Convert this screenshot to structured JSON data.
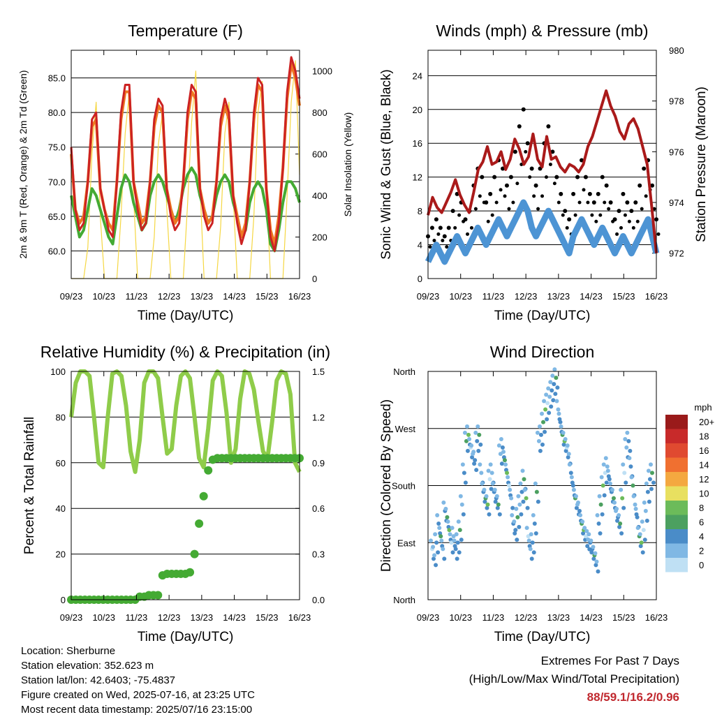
{
  "x_ticks": [
    "09/23",
    "10/23",
    "11/23",
    "12/23",
    "13/23",
    "14/23",
    "15/23",
    "16/23"
  ],
  "chart_data": [
    {
      "type": "line",
      "title": "Temperature (F)",
      "xlabel": "Time (Day/UTC)",
      "ylabel": "2m & 9m T (Red, Orange) & 2m Td (Green)",
      "ylabel_right": "Solar Insolation (Yellow)",
      "ylim": [
        56,
        89
      ],
      "yticks": [
        "60.0",
        "65.0",
        "70.0",
        "75.0",
        "80.0",
        "85.0"
      ],
      "ylim_right": [
        0,
        1100
      ],
      "yticks_right": [
        "0",
        "200",
        "400",
        "600",
        "800",
        "1000"
      ],
      "series": [
        {
          "name": "2m T",
          "color": "#cc2222",
          "values": [
            75,
            66,
            63,
            64,
            70,
            79,
            80,
            69,
            66,
            63,
            62,
            70,
            80,
            84,
            84,
            70,
            66,
            63,
            64,
            70,
            79,
            82,
            81,
            69,
            65,
            63,
            64,
            70,
            80,
            84,
            83,
            69,
            65,
            63,
            64,
            70,
            79,
            82,
            80,
            68,
            64,
            61,
            63,
            70,
            80,
            85,
            84,
            69,
            62,
            60,
            64,
            72,
            83,
            88,
            86,
            82
          ]
        },
        {
          "name": "9m T",
          "color": "#ee7722",
          "values": [
            74,
            66,
            64,
            65,
            70,
            78,
            79,
            69,
            66,
            64,
            63,
            70,
            79,
            83,
            83,
            70,
            67,
            64,
            65,
            70,
            78,
            81,
            80,
            69,
            66,
            64,
            65,
            70,
            79,
            83,
            82,
            69,
            66,
            64,
            65,
            70,
            78,
            81,
            79,
            68,
            65,
            62,
            64,
            70,
            79,
            84,
            83,
            69,
            63,
            61,
            65,
            72,
            82,
            87,
            85,
            81
          ]
        },
        {
          "name": "2m Td",
          "color": "#44aa33",
          "values": [
            68,
            65,
            62,
            63,
            66,
            69,
            68,
            66,
            64,
            62,
            61,
            65,
            69,
            71,
            70,
            67,
            65,
            63,
            64,
            68,
            70,
            71,
            70,
            68,
            66,
            64,
            66,
            69,
            71,
            72,
            71,
            68,
            66,
            64,
            65,
            68,
            70,
            71,
            70,
            67,
            65,
            62,
            63,
            67,
            69,
            70,
            69,
            66,
            61,
            60,
            63,
            67,
            70,
            70,
            69,
            67
          ]
        },
        {
          "name": "Solar Insolation",
          "color": "#f5d742",
          "axis": "right",
          "values": [
            0,
            0,
            0,
            0,
            150,
            600,
            850,
            300,
            0,
            0,
            0,
            0,
            300,
            700,
            900,
            400,
            0,
            0,
            0,
            0,
            200,
            650,
            800,
            350,
            0,
            0,
            0,
            0,
            350,
            750,
            1000,
            450,
            0,
            0,
            0,
            0,
            250,
            700,
            850,
            400,
            0,
            0,
            0,
            0,
            300,
            800,
            950,
            450,
            0,
            0,
            0,
            0,
            400,
            850,
            1050,
            500
          ]
        }
      ]
    },
    {
      "type": "line",
      "title": "Winds (mph) & Pressure (mb)",
      "xlabel": "Time (Day/UTC)",
      "ylabel": "Sonic Wind & Gust (Blue, Black)",
      "ylabel_right": "Station Pressure (Maroon)",
      "ylim": [
        0,
        27
      ],
      "yticks": [
        "0",
        "4",
        "8",
        "12",
        "16",
        "20",
        "24"
      ],
      "ylim_right": [
        971,
        980
      ],
      "yticks_right": [
        "972",
        "974",
        "976",
        "978",
        "980"
      ],
      "series": [
        {
          "name": "Sonic Wind",
          "color": "#4d94d4",
          "values": [
            2,
            3,
            4,
            3,
            2,
            3,
            4,
            5,
            4,
            3,
            4,
            5,
            6,
            5,
            4,
            5,
            6,
            7,
            6,
            5,
            6,
            7,
            8,
            9,
            8,
            6,
            5,
            6,
            7,
            8,
            7,
            6,
            5,
            4,
            3,
            5,
            6,
            7,
            6,
            5,
            4,
            5,
            6,
            5,
            4,
            3,
            4,
            5,
            4,
            3,
            4,
            5,
            6,
            7,
            5,
            3
          ]
        },
        {
          "name": "Gust",
          "color": "#000000",
          "values": [
            5,
            6,
            7,
            6,
            5,
            6,
            8,
            10,
            9,
            7,
            8,
            11,
            13,
            12,
            9,
            10,
            12,
            14,
            13,
            11,
            12,
            15,
            18,
            20,
            16,
            13,
            11,
            13,
            16,
            18,
            15,
            12,
            10,
            8,
            7,
            10,
            12,
            14,
            12,
            10,
            9,
            10,
            12,
            11,
            9,
            7,
            8,
            10,
            9,
            8,
            9,
            11,
            13,
            14,
            11,
            7
          ]
        },
        {
          "name": "Station Pressure",
          "color": "#aa1a1a",
          "axis": "right",
          "values": [
            973.5,
            974.2,
            973.8,
            973.6,
            974.0,
            974.4,
            974.9,
            974.3,
            973.9,
            973.6,
            974.4,
            975.3,
            975.6,
            976.2,
            975.5,
            975.6,
            976.0,
            975.3,
            975.7,
            976.5,
            976.1,
            975.5,
            975.8,
            976.7,
            975.7,
            975.4,
            976.6,
            975.7,
            975.8,
            975.4,
            975.2,
            975.5,
            975.4,
            975.2,
            975.5,
            976.2,
            976.6,
            977.2,
            977.8,
            978.4,
            977.8,
            977.4,
            976.8,
            976.5,
            977.1,
            977.3,
            976.9,
            976.2,
            975.5,
            973.8,
            972.0
          ]
        }
      ]
    },
    {
      "type": "line",
      "title": "Relative Humidity (%) & Precipitation (in)",
      "xlabel": "Time (Day/UTC)",
      "ylabel": "Percent & Total Rainfall",
      "ylim": [
        0,
        100
      ],
      "yticks": [
        "0",
        "20",
        "40",
        "60",
        "80",
        "100"
      ],
      "ylim_right": [
        0,
        1.5
      ],
      "yticks_right": [
        "0.0",
        "0.3",
        "0.6",
        "0.9",
        "1.2",
        "1.5"
      ],
      "series": [
        {
          "name": "Relative Humidity",
          "color": "#8fcc4a",
          "values": [
            80,
            95,
            100,
            100,
            98,
            80,
            60,
            58,
            80,
            99,
            100,
            98,
            85,
            65,
            56,
            70,
            95,
            100,
            100,
            97,
            80,
            64,
            66,
            85,
            98,
            100,
            97,
            80,
            62,
            58,
            75,
            96,
            100,
            98,
            82,
            60,
            66,
            88,
            100,
            99,
            92,
            78,
            65,
            62,
            78,
            96,
            100,
            99,
            90,
            60,
            56
          ]
        },
        {
          "name": "Total Rainfall",
          "color": "#44aa33",
          "axis": "right",
          "values": [
            0,
            0,
            0,
            0,
            0,
            0,
            0,
            0,
            0,
            0,
            0,
            0,
            0,
            0,
            0,
            0.02,
            0.02,
            0.03,
            0.03,
            0.03,
            0.16,
            0.17,
            0.17,
            0.17,
            0.17,
            0.17,
            0.18,
            0.3,
            0.5,
            0.68,
            0.85,
            0.92,
            0.93,
            0.93,
            0.93,
            0.93,
            0.93,
            0.93,
            0.93,
            0.93,
            0.93,
            0.93,
            0.93,
            0.93,
            0.93,
            0.93,
            0.93,
            0.93,
            0.93,
            0.93,
            0.93
          ]
        }
      ]
    },
    {
      "type": "scatter",
      "title": "Wind Direction",
      "xlabel": "Time (Day/UTC)",
      "ylabel": "Direction (Colored By Speed)",
      "yticks": [
        "North",
        "East",
        "South",
        "West",
        "North"
      ],
      "colorbar_title": "mph",
      "colorbar_labels": [
        "20+",
        "18",
        "16",
        "14",
        "12",
        "10",
        "8",
        "6",
        "4",
        "2",
        "0"
      ],
      "colorbar_colors": [
        "#9a1a1a",
        "#c82a2a",
        "#e04a30",
        "#f07030",
        "#f4a840",
        "#e8e060",
        "#6cbb5a",
        "#4ca060",
        "#4a8cc8",
        "#80b8e4",
        "#bfe0f4"
      ],
      "direction_deg": [
        80,
        70,
        90,
        120,
        100,
        80,
        140,
        130,
        110,
        90,
        100,
        80,
        90,
        110,
        150,
        200,
        250,
        260,
        240,
        230,
        220,
        250,
        260,
        200,
        170,
        160,
        150,
        190,
        200,
        170,
        160,
        150,
        230,
        240,
        220,
        200,
        180,
        160,
        120,
        110,
        130,
        150,
        170,
        190,
        160,
        100,
        80,
        90,
        120,
        170,
        250,
        260,
        280,
        300,
        310,
        320,
        330,
        340,
        350,
        300,
        280,
        260,
        250,
        240,
        230,
        200,
        180,
        160,
        150,
        140,
        120,
        110,
        100,
        95,
        90,
        80,
        70,
        60,
        120,
        150,
        180,
        200,
        210,
        190,
        170,
        160,
        140,
        130,
        120,
        160,
        200,
        240,
        250,
        210,
        180,
        150,
        130,
        100,
        90,
        110,
        140,
        170,
        190,
        200
      ]
    }
  ],
  "info": {
    "location": "Location: Sherburne",
    "elevation": "Station elevation: 352.623 m",
    "latlon": "Station lat/lon: 42.6403; -75.4837",
    "created": "Figure created on Wed, 2025-07-16, at 23:25 UTC",
    "recent": "Most recent data timestamp: 2025/07/16 23:15:00"
  },
  "extremes": {
    "title": "Extremes For Past 7 Days",
    "subtitle": "(High/Low/Max Wind/Total Precipitation)",
    "values": "88/59.1/16.2/0.96",
    "values_color": "#c0282e"
  }
}
